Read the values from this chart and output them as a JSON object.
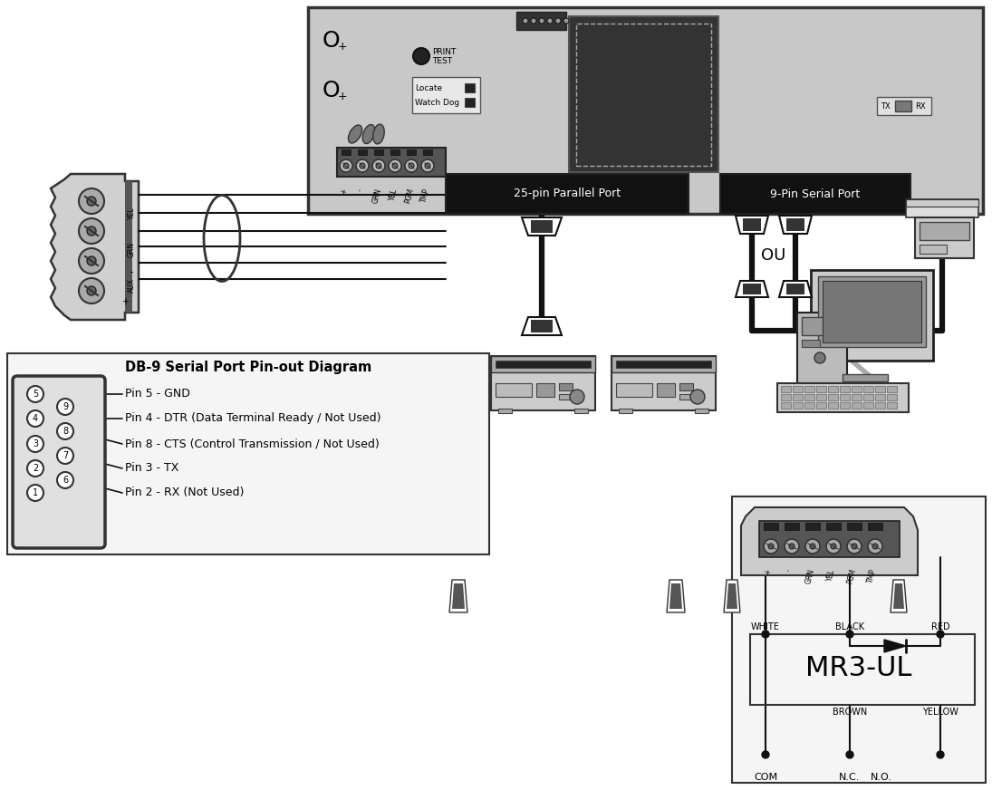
{
  "bg_color": "#ffffff",
  "title": "DB-9 Serial Port Pin-out Diagram",
  "pin_labels": [
    "Pin 5 - GND",
    "Pin 4 - DTR (Data Terminal Ready / Not Used)",
    "Pin 8 - CTS (Control Transmission / Not Used)",
    "Pin 3 - TX",
    "Pin 2 - RX (Not Used)"
  ],
  "port_label_parallel": "25-pin Parallel Port",
  "port_label_serial": "9-Pin Serial Port",
  "mr3ul_label": "MR3-UL",
  "white_label": "WHITE",
  "black_label": "BLACK",
  "red_label": "RED",
  "brown_label": "BROWN",
  "yellow_label": "YELLOW",
  "terminal_labels": [
    "COM",
    "N.C.",
    "N.O."
  ],
  "connector_labels": [
    "+",
    "-",
    "GRN",
    "YEL",
    "PGM",
    "TMP"
  ],
  "ou_label": "OU",
  "tx_label": "TX",
  "rx_label": "RX",
  "locate_label": "Locate",
  "watchdog_label": "Watch Dog",
  "print_test_label1": "PRINT",
  "print_test_label2": "TEST"
}
